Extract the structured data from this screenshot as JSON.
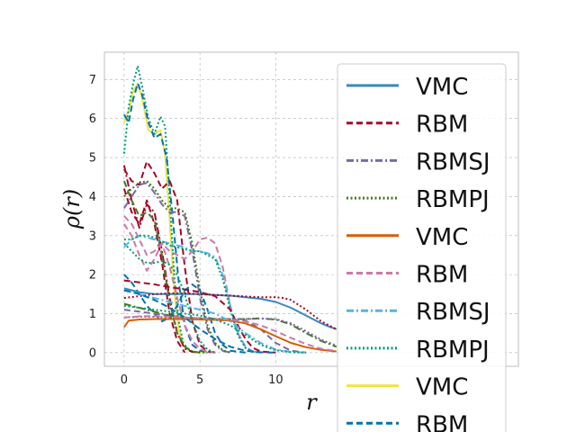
{
  "chart_data": {
    "type": "line",
    "title": "",
    "xlabel": "r",
    "ylabel": "ρ(r)",
    "xlim": [
      -1.3,
      26
    ],
    "ylim": [
      -0.35,
      7.7
    ],
    "xticks": [
      0,
      5,
      10
    ],
    "yticks": [
      0,
      1,
      2,
      3,
      4,
      5,
      6,
      7
    ],
    "grid": true,
    "legend_position": "right",
    "legend": [
      {
        "label": "VMC",
        "color": "#348ABD",
        "dash": "solid"
      },
      {
        "label": "RBM",
        "color": "#A60628",
        "dash": "dashed"
      },
      {
        "label": "RBMSJ",
        "color": "#7A68A6",
        "dash": "dashdot"
      },
      {
        "label": "RBMPJ",
        "color": "#467821",
        "dash": "dotted"
      },
      {
        "label": "VMC",
        "color": "#D55E00",
        "dash": "solid"
      },
      {
        "label": "RBM",
        "color": "#CC79A7",
        "dash": "dashed"
      },
      {
        "label": "RBMSJ",
        "color": "#56B4E9",
        "dash": "dashdot"
      },
      {
        "label": "RBMPJ",
        "color": "#009E73",
        "dash": "dotted"
      },
      {
        "label": "VMC",
        "color": "#F0E442",
        "dash": "solid"
      },
      {
        "label": "RBM",
        "color": "#0072B2",
        "dash": "dashed"
      }
    ],
    "series": [
      {
        "color": "#F0E442",
        "dash": "solid",
        "x": [
          0,
          0.3,
          0.6,
          0.9,
          1.2,
          1.6,
          2.0,
          2.4,
          2.7,
          3.0,
          3.3,
          3.6,
          3.9,
          4.3,
          4.8,
          5.5
        ],
        "y": [
          5.9,
          6.2,
          6.7,
          6.9,
          6.5,
          5.7,
          5.6,
          5.7,
          5.1,
          3.4,
          1.6,
          0.6,
          0.2,
          0.05,
          0.01,
          0
        ]
      },
      {
        "color": "#009E73",
        "dash": "dotted",
        "x": [
          0,
          0.3,
          0.6,
          0.9,
          1.2,
          1.6,
          2.0,
          2.4,
          2.7,
          3.0,
          3.3,
          3.6,
          3.9,
          4.3,
          4.8,
          5.5
        ],
        "y": [
          5.1,
          6.3,
          6.9,
          7.35,
          6.8,
          6.0,
          5.6,
          6.05,
          5.8,
          4.0,
          2.0,
          0.8,
          0.25,
          0.06,
          0.01,
          0
        ]
      },
      {
        "color": "#0072B2",
        "dash": "dashed",
        "x": [
          0,
          0.3,
          0.6,
          0.9,
          1.2,
          1.6,
          2.0,
          2.4,
          2.8,
          3.2,
          3.6,
          4.0,
          4.5,
          5.0,
          5.6,
          6.2
        ],
        "y": [
          6.1,
          5.9,
          6.5,
          6.9,
          6.6,
          5.9,
          5.5,
          5.6,
          5.0,
          3.5,
          1.8,
          0.7,
          0.2,
          0.05,
          0.01,
          0
        ]
      },
      {
        "color": "#A60628",
        "dash": "dashed",
        "x": [
          0,
          0.5,
          1.0,
          1.5,
          2.0,
          2.5,
          3.0,
          3.5,
          4.0,
          4.5,
          5.0,
          5.5,
          6.0
        ],
        "y": [
          4.7,
          4.4,
          4.3,
          4.9,
          4.6,
          4.2,
          4.4,
          3.9,
          2.2,
          0.8,
          0.2,
          0.03,
          0
        ]
      },
      {
        "color": "#A60628",
        "dash": "dashdot",
        "x": [
          0,
          0.5,
          1.0,
          1.5,
          2.0,
          2.5,
          3.0,
          3.5,
          4.0,
          4.5,
          5.0
        ],
        "y": [
          4.8,
          3.9,
          3.2,
          3.8,
          3.6,
          2.6,
          1.4,
          0.5,
          0.1,
          0.02,
          0
        ]
      },
      {
        "color": "#A60628",
        "dash": "dashed",
        "x": [
          0,
          0.5,
          1.0,
          1.5,
          2.0,
          2.5,
          3.0,
          3.5,
          4.0
        ],
        "y": [
          4.2,
          3.6,
          3.3,
          3.9,
          3.3,
          2.3,
          1.0,
          0.3,
          0
        ]
      },
      {
        "color": "#7A68A6",
        "dash": "dashdot",
        "x": [
          0,
          0.5,
          1.0,
          1.5,
          2.0,
          2.5,
          3.0,
          3.5,
          4.0,
          4.5,
          5.0,
          5.5,
          6.0,
          6.5,
          7.0
        ],
        "y": [
          3.7,
          4.0,
          4.3,
          4.35,
          4.1,
          3.8,
          3.6,
          3.6,
          3.5,
          2.6,
          1.4,
          0.6,
          0.2,
          0.05,
          0
        ]
      },
      {
        "color": "#467821",
        "dash": "dotted",
        "x": [
          0,
          0.5,
          1.0,
          1.5,
          2.0,
          2.5,
          3.0,
          3.5,
          4.0,
          4.5,
          5.0,
          5.5,
          6.0,
          6.5,
          7.0
        ],
        "y": [
          4.0,
          4.2,
          4.35,
          4.4,
          4.2,
          3.9,
          3.7,
          3.7,
          3.6,
          2.8,
          1.6,
          0.7,
          0.25,
          0.06,
          0
        ]
      },
      {
        "color": "#467821",
        "dash": "dashed",
        "x": [
          0,
          0.5,
          1.0,
          1.5,
          2.0,
          2.5,
          3.0,
          3.5,
          4.0,
          4.5,
          5.0
        ],
        "y": [
          4.4,
          3.9,
          3.5,
          3.6,
          3.4,
          2.5,
          1.3,
          0.5,
          0.15,
          0.03,
          0
        ]
      },
      {
        "color": "#CC79A7",
        "dash": "dashed",
        "x": [
          0,
          0.5,
          1.0,
          1.5,
          2.0,
          2.5,
          3.0,
          3.5,
          4.0,
          4.5,
          5.0,
          5.5,
          6.0,
          6.5,
          7.0,
          7.5,
          8.0,
          8.5,
          9.0
        ],
        "y": [
          3.5,
          3.3,
          2.9,
          2.5,
          2.6,
          2.8,
          2.6,
          2.5,
          2.4,
          2.6,
          2.9,
          2.95,
          2.8,
          2.2,
          1.2,
          0.5,
          0.15,
          0.03,
          0
        ]
      },
      {
        "color": "#CC79A7",
        "dash": "dashed",
        "x": [
          0,
          0.5,
          1.0,
          1.5,
          2.0,
          2.5,
          3.0,
          3.5,
          4.0,
          4.5,
          5.0,
          5.5,
          6.0
        ],
        "y": [
          3.3,
          3.0,
          2.5,
          2.1,
          2.4,
          2.8,
          2.2,
          1.4,
          0.7,
          0.3,
          0.1,
          0.02,
          0
        ]
      },
      {
        "color": "#56B4E9",
        "dash": "dashdot",
        "x": [
          0,
          0.5,
          1.0,
          1.5,
          2.0,
          2.5,
          3.0,
          3.5,
          4.0,
          4.5,
          5.0,
          5.5,
          6.0,
          6.5,
          7.0,
          7.5,
          8.0,
          8.5,
          9.0
        ],
        "y": [
          2.7,
          2.9,
          3.0,
          2.95,
          2.9,
          2.85,
          2.8,
          2.75,
          2.7,
          2.6,
          2.6,
          2.55,
          2.45,
          2.0,
          1.2,
          0.5,
          0.15,
          0.03,
          0
        ]
      },
      {
        "color": "#009E73",
        "dash": "dotted",
        "x": [
          0,
          0.5,
          1.0,
          1.5,
          2.0,
          2.5,
          3.0,
          3.5,
          4.0,
          4.5,
          5.0,
          5.5,
          6.0,
          6.5,
          7.0,
          7.5,
          8.0,
          8.5,
          9.0
        ],
        "y": [
          2.9,
          2.9,
          3.0,
          3.0,
          2.95,
          2.85,
          2.75,
          2.7,
          2.65,
          2.6,
          2.6,
          2.5,
          2.4,
          1.9,
          1.1,
          0.45,
          0.12,
          0.02,
          0
        ]
      },
      {
        "color": "#009E73",
        "dash": "dotted",
        "x": [
          0,
          0.5,
          1.0,
          1.5,
          2.0,
          2.5,
          3.0,
          3.5,
          4.0,
          4.5,
          5.0,
          5.5,
          6.0
        ],
        "y": [
          2.8,
          2.6,
          2.4,
          2.3,
          2.3,
          2.35,
          2.25,
          2.0,
          1.5,
          0.8,
          0.3,
          0.08,
          0
        ]
      },
      {
        "color": "#0072B2",
        "dash": "dashed",
        "x": [
          0,
          0.5,
          1.0,
          1.5,
          2.0,
          2.5,
          3.0,
          3.5,
          4.0,
          4.5,
          5.0,
          5.5,
          6.0,
          6.5,
          7.0,
          8.0
        ],
        "y": [
          2.0,
          1.8,
          1.5,
          1.2,
          1.0,
          0.8,
          0.9,
          1.2,
          1.6,
          1.75,
          1.6,
          1.1,
          0.5,
          0.2,
          0.05,
          0
        ]
      },
      {
        "color": "#348ABD",
        "dash": "solid",
        "x": [
          0,
          1,
          2,
          3,
          4,
          5,
          6,
          7,
          8,
          9,
          10,
          11,
          12,
          12.5,
          13,
          13.5,
          14
        ],
        "y": [
          1.65,
          1.55,
          1.5,
          1.5,
          1.5,
          1.5,
          1.48,
          1.46,
          1.42,
          1.38,
          1.3,
          1.15,
          0.95,
          0.85,
          0.75,
          0.67,
          0.6
        ]
      },
      {
        "color": "#A60628",
        "dash": "dotted",
        "x": [
          0,
          1,
          2,
          3,
          4,
          5,
          6,
          7,
          8,
          9,
          10,
          10.5,
          11,
          12,
          13,
          14
        ],
        "y": [
          1.4,
          1.45,
          1.5,
          1.52,
          1.52,
          1.5,
          1.48,
          1.46,
          1.44,
          1.42,
          1.42,
          1.4,
          1.35,
          1.1,
          0.8,
          0.6
        ]
      },
      {
        "color": "#A60628",
        "dash": "dashed",
        "x": [
          0,
          1,
          2,
          3,
          4,
          5,
          6,
          7,
          7.5,
          8,
          8.5,
          9,
          10
        ],
        "y": [
          1.85,
          1.8,
          1.75,
          1.68,
          1.62,
          1.55,
          1.45,
          1.1,
          0.7,
          0.35,
          0.12,
          0.03,
          0
        ]
      },
      {
        "color": "#7A68A6",
        "dash": "dashed",
        "x": [
          0,
          1,
          2,
          3,
          4,
          5,
          6,
          7,
          8,
          9,
          10,
          11,
          12
        ],
        "y": [
          1.1,
          1.05,
          1.0,
          0.95,
          0.9,
          0.88,
          0.86,
          0.85,
          0.82,
          0.6,
          0.25,
          0.05,
          0
        ]
      },
      {
        "color": "#467821",
        "dash": "dashdot",
        "x": [
          0,
          1,
          2,
          3,
          4,
          5,
          6,
          7,
          8,
          9,
          10,
          11,
          12,
          13,
          14
        ],
        "y": [
          1.25,
          1.15,
          1.05,
          0.95,
          0.9,
          0.88,
          0.87,
          0.86,
          0.86,
          0.88,
          0.85,
          0.72,
          0.5,
          0.3,
          0.15
        ]
      },
      {
        "color": "#7A68A6",
        "dash": "dotted",
        "x": [
          0,
          1,
          2,
          3,
          4,
          5,
          6,
          7,
          8,
          9,
          10,
          11,
          12,
          13,
          14
        ],
        "y": [
          0.9,
          0.92,
          0.92,
          0.9,
          0.88,
          0.87,
          0.86,
          0.86,
          0.86,
          0.87,
          0.86,
          0.75,
          0.55,
          0.33,
          0.18
        ]
      },
      {
        "color": "#D55E00",
        "dash": "solid",
        "x": [
          0,
          0.3,
          1,
          2,
          3,
          4,
          5,
          6,
          7,
          8,
          9,
          10,
          11,
          12,
          13,
          14
        ],
        "y": [
          0.65,
          0.82,
          0.85,
          0.86,
          0.86,
          0.86,
          0.85,
          0.84,
          0.82,
          0.75,
          0.6,
          0.42,
          0.25,
          0.14,
          0.07,
          0.03
        ]
      },
      {
        "color": "#CC79A7",
        "dash": "dashed",
        "x": [
          0,
          1,
          2,
          3,
          4,
          5,
          6,
          7,
          8,
          9,
          10,
          11,
          12,
          13,
          14
        ],
        "y": [
          0.9,
          0.93,
          0.94,
          0.92,
          0.9,
          0.88,
          0.86,
          0.84,
          0.8,
          0.7,
          0.55,
          0.38,
          0.22,
          0.1,
          0.04
        ]
      },
      {
        "color": "#56B4E9",
        "dash": "dashdot",
        "x": [
          0,
          1,
          2,
          3,
          4,
          5,
          6,
          7,
          8,
          9,
          10,
          11,
          12
        ],
        "y": [
          1.6,
          1.5,
          1.4,
          1.3,
          1.2,
          1.1,
          1.0,
          0.8,
          0.5,
          0.25,
          0.08,
          0.02,
          0
        ]
      },
      {
        "color": "#009E73",
        "dash": "dotted",
        "x": [
          0,
          1,
          2,
          3,
          4,
          5,
          6,
          7,
          8,
          9,
          10,
          11,
          12
        ],
        "y": [
          1.2,
          1.15,
          1.1,
          1.05,
          1.0,
          0.95,
          0.85,
          0.7,
          0.45,
          0.2,
          0.06,
          0.01,
          0
        ]
      },
      {
        "color": "#0072B2",
        "dash": "dashed",
        "x": [
          0,
          1,
          2,
          3,
          4,
          5,
          6,
          7,
          8,
          9,
          10
        ],
        "y": [
          1.6,
          1.5,
          1.35,
          1.15,
          0.9,
          0.6,
          0.35,
          0.15,
          0.05,
          0.01,
          0
        ]
      }
    ]
  }
}
